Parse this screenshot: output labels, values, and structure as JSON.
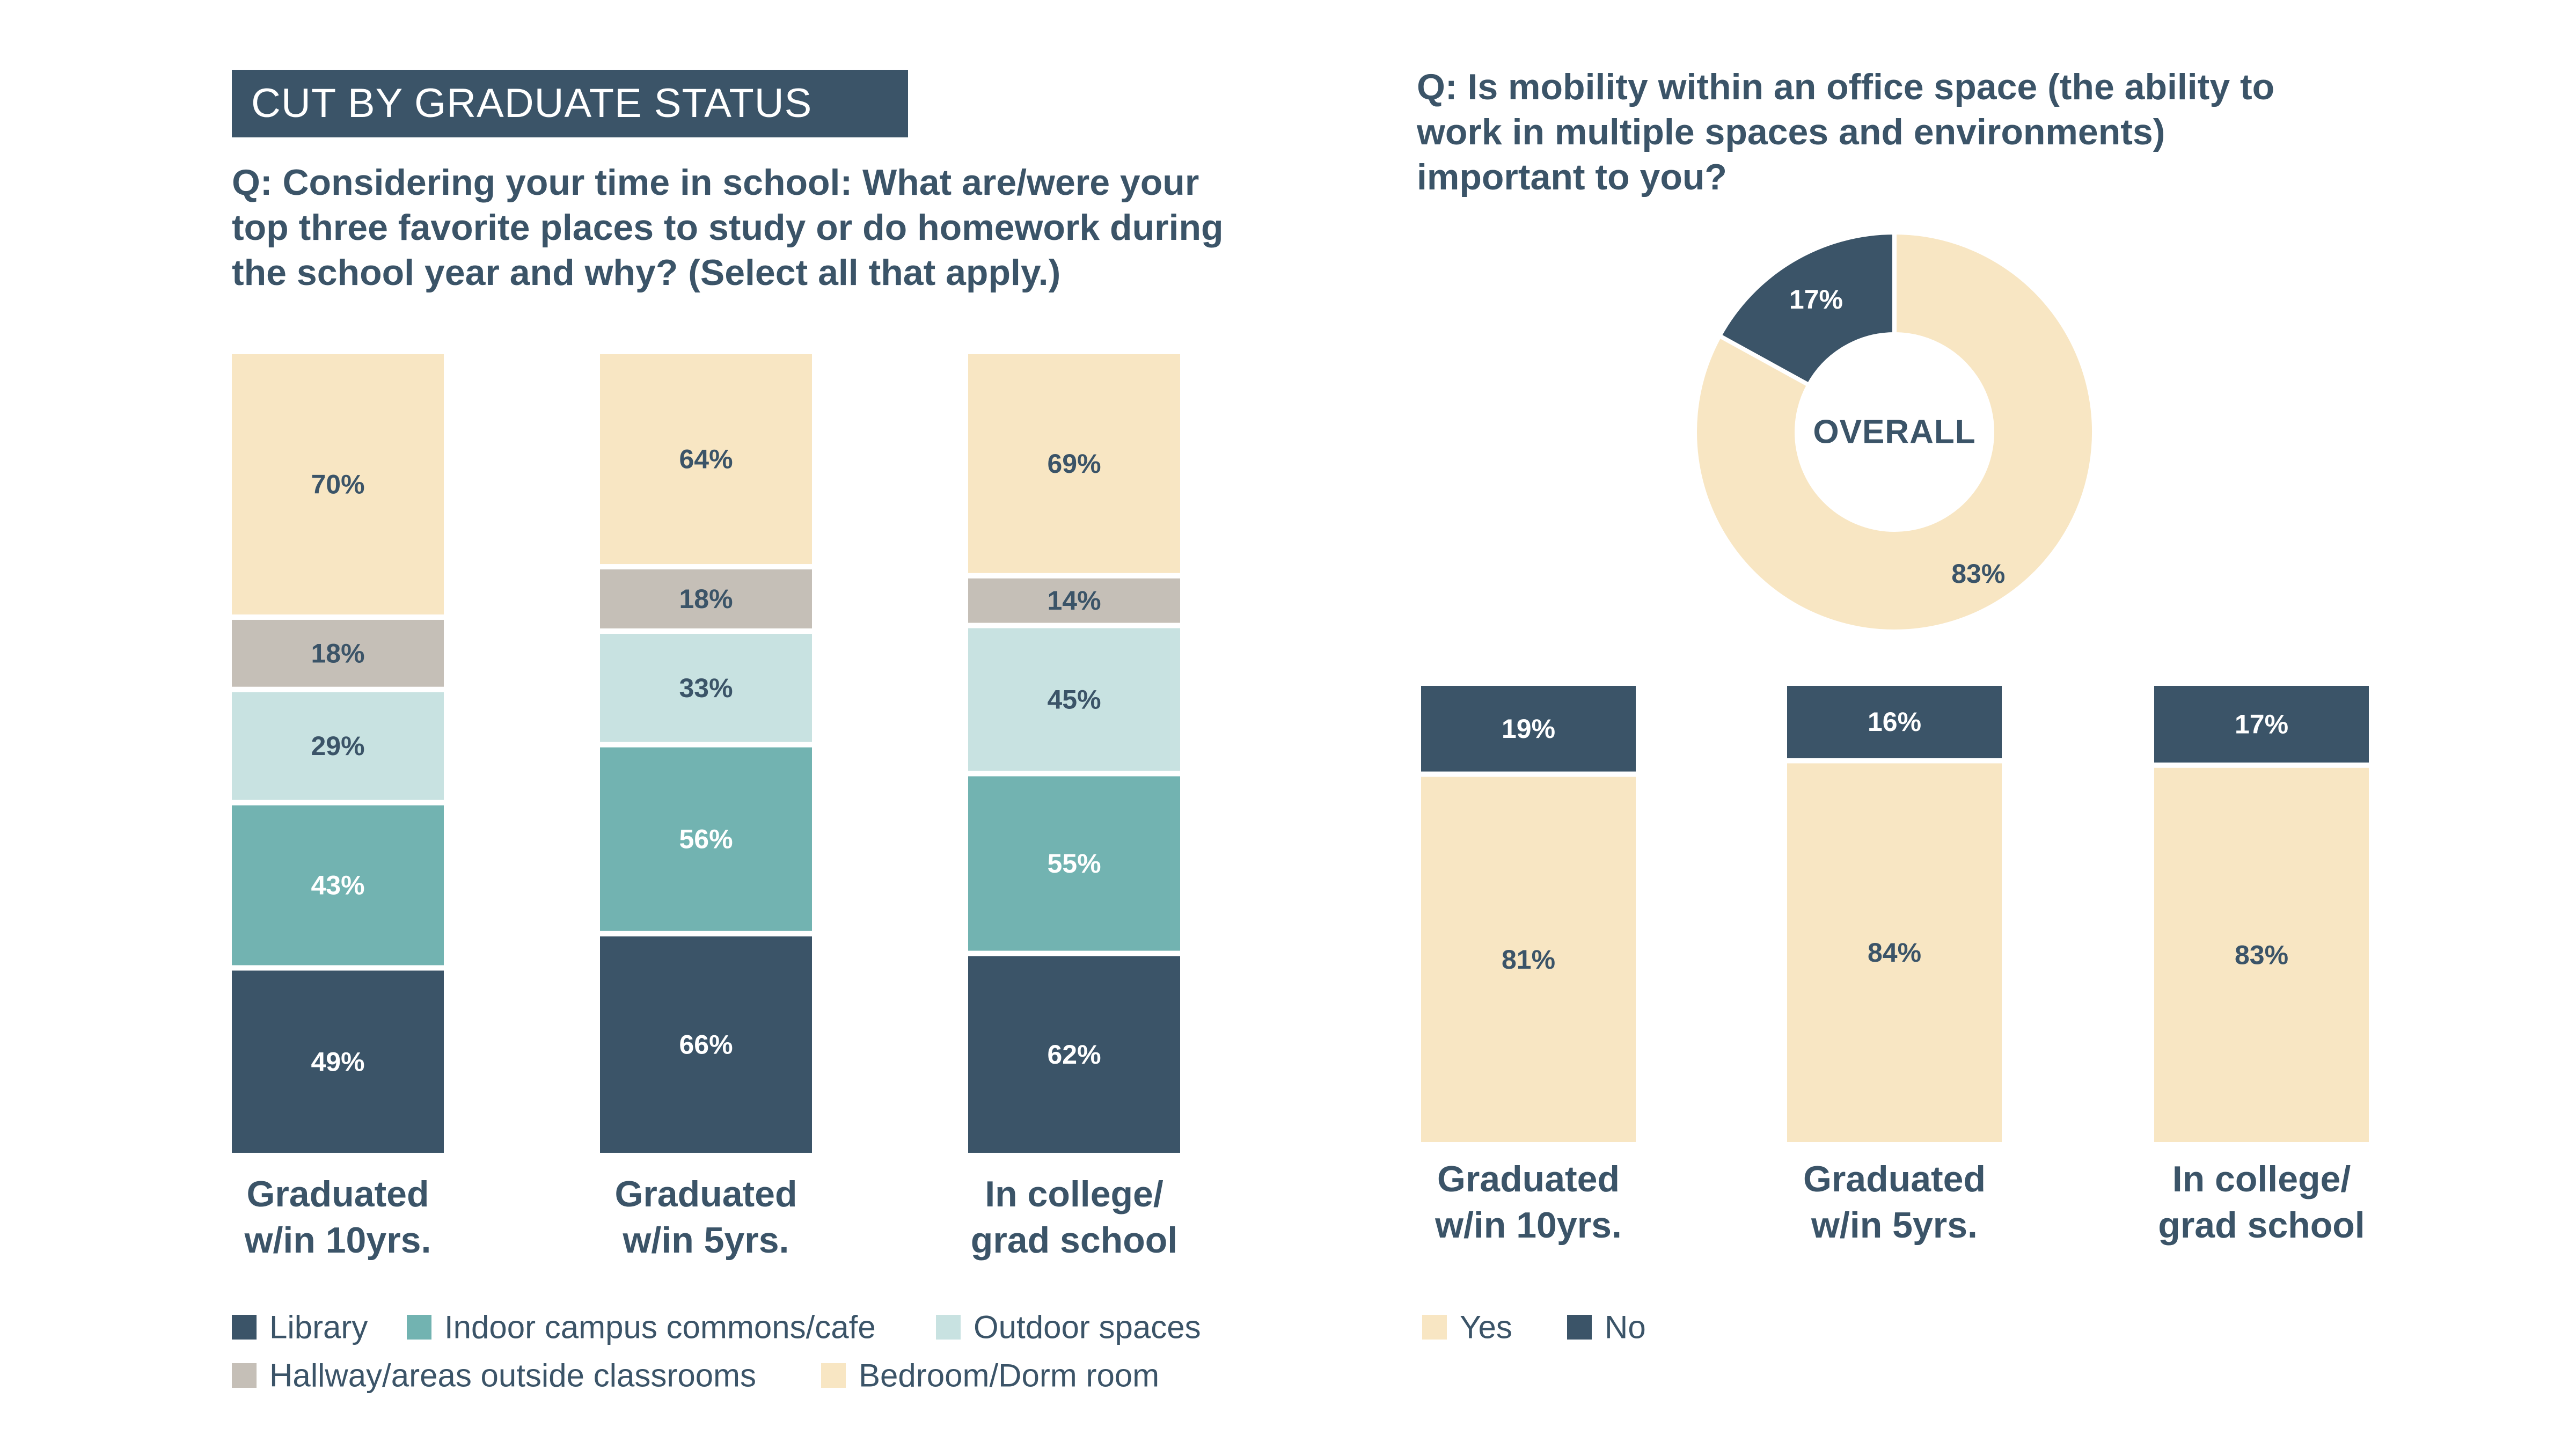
{
  "banner": {
    "title": "CUT BY GRADUATE STATUS"
  },
  "left_question": {
    "q": "Q:",
    "text": "Considering your time in school: What are/were your top three favorite places to study or do homework during the school year and why? (Select all that apply.)"
  },
  "right_question": {
    "q": "Q:",
    "text": "Is mobility within an office space (the ability to work in multiple spaces and environments) important to you?"
  },
  "colors": {
    "Library": "#3b5468",
    "Indoor campus commons/cafe": "#72b3b1",
    "Outdoor spaces": "#c8e2e1",
    "Hallway/areas outside classrooms": "#c5bfb7",
    "Bedroom/Dorm room": "#f8e6c3",
    "Yes": "#f8e6c3",
    "No": "#3b5468",
    "dark_text": "#3b5468",
    "light_text": "#ffffff"
  },
  "chart_data": [
    {
      "type": "bar",
      "stacked": true,
      "categories": [
        "Graduated\nw/in 10yrs.",
        "Graduated\nw/in 5yrs.",
        "In college/\ngrad school"
      ],
      "series": [
        {
          "name": "Library",
          "values": [
            49,
            66,
            62
          ]
        },
        {
          "name": "Indoor campus commons/cafe",
          "values": [
            43,
            56,
            55
          ]
        },
        {
          "name": "Outdoor spaces",
          "values": [
            29,
            33,
            45
          ]
        },
        {
          "name": "Hallway/areas outside classrooms",
          "values": [
            18,
            18,
            14
          ]
        },
        {
          "name": "Bedroom/Dorm room",
          "values": [
            70,
            64,
            69
          ]
        }
      ],
      "value_suffix": "%",
      "legend": {
        "position": "bottom",
        "entries": [
          "Library",
          "Indoor campus commons/cafe",
          "Outdoor spaces",
          "Hallway/areas outside classrooms",
          "Bedroom/Dorm room"
        ]
      }
    },
    {
      "type": "pie",
      "donut": true,
      "center_label": "OVERALL",
      "slices": [
        {
          "name": "No",
          "value": 17
        },
        {
          "name": "Yes",
          "value": 83
        }
      ],
      "value_suffix": "%"
    },
    {
      "type": "bar",
      "stacked": true,
      "categories": [
        "Graduated\nw/in 10yrs.",
        "Graduated\nw/in 5yrs.",
        "In college/\ngrad school"
      ],
      "series": [
        {
          "name": "Yes",
          "values": [
            81,
            84,
            83
          ]
        },
        {
          "name": "No",
          "values": [
            19,
            16,
            17
          ]
        }
      ],
      "value_suffix": "%",
      "legend": {
        "position": "bottom",
        "entries": [
          "Yes",
          "No"
        ]
      }
    }
  ]
}
